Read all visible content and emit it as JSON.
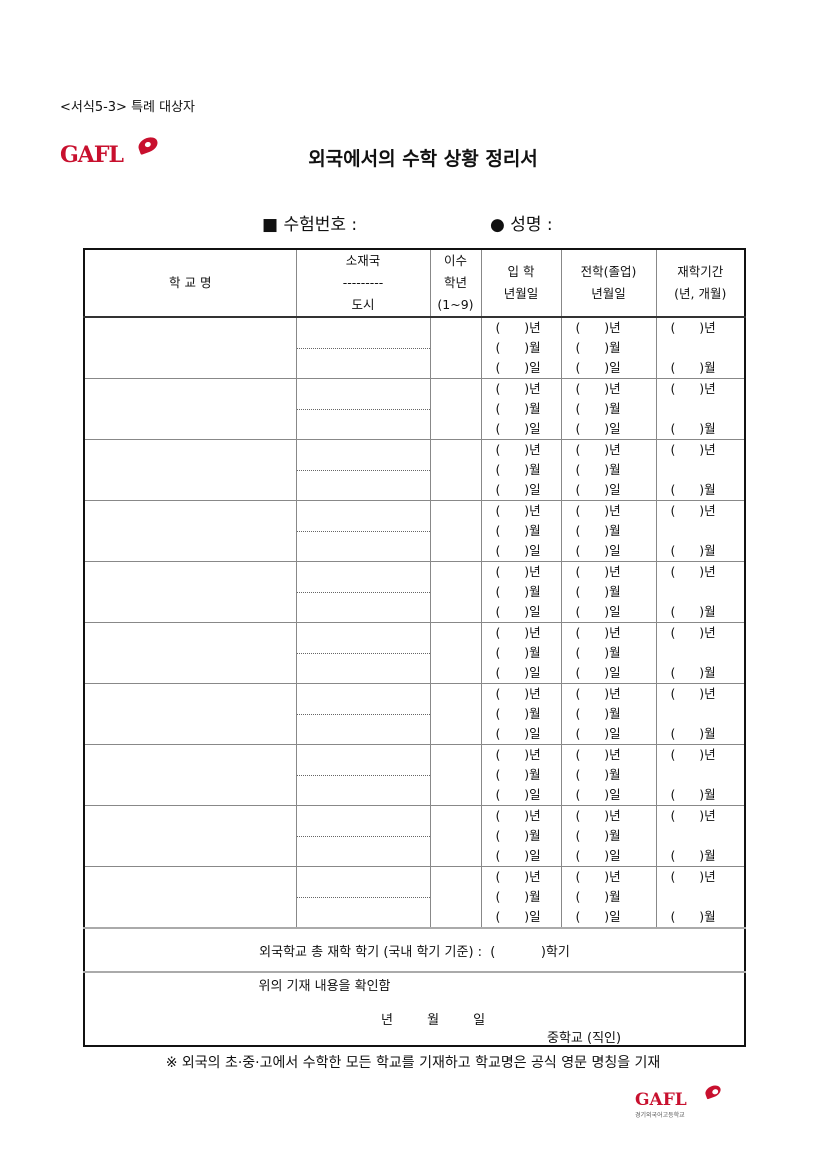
{
  "form_code": "<서식5-3> 특례 대상자",
  "logo": {
    "text": "GAFL",
    "subtitle": "경기외국어고등학교",
    "color": "#c8102e"
  },
  "title": "외국에서의 수학 상황 정리서",
  "exam_number_label": "■ 수험번호 :",
  "name_label": "● 성명 :",
  "table": {
    "headers": {
      "school": "학 교 명",
      "country": "소재국",
      "divider": "---------",
      "city": "도시",
      "grade_1": "이수",
      "grade_2": "학년",
      "grade_3": "(1~9)",
      "entry_1": "입  학",
      "entry_2": "년월일",
      "transfer_1": "전학(졸업)",
      "transfer_2": "년월일",
      "period_1": "재학기간",
      "period_2": "(년, 개월)"
    },
    "date_template": {
      "year": "(      )년",
      "month": "(      )월",
      "day": "(      )일"
    },
    "period_template": {
      "year": "(      )년",
      "month": "(      )월"
    },
    "row_count": 10,
    "total": "외국학교 총 재학 학기 (국내 학기 기준) :  (           )학기",
    "confirm": {
      "text": "위의 기재 내용을 확인함",
      "date": "년 월 일",
      "school": "중학교 (직인)"
    }
  },
  "note": "※ 외국의 초·중·고에서 수학한 모든 학교를 기재하고 학교명은 공식 영문 명칭을 기재"
}
